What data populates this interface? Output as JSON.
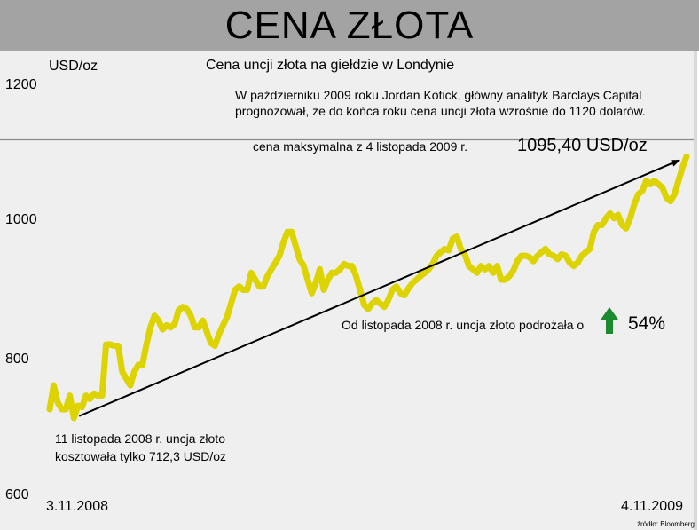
{
  "header": {
    "title": "CENA ZŁOTA"
  },
  "chart_data": {
    "type": "line",
    "title": "Cena uncji złota na giełdzie w Londynie",
    "ylabel": "USD/oz",
    "ylim": [
      600,
      1200
    ],
    "yticks": [
      600,
      800,
      1000,
      1200
    ],
    "x_start_label": "3.11.2008",
    "x_end_label": "4.11.2009",
    "grid": false,
    "colors": {
      "line": "#dcd300",
      "trend": "#000000",
      "arrow_up": "#1c8a2e",
      "reference_line": "#8a8a8a"
    },
    "reference_line": 1120,
    "series": [
      {
        "values": [
          725,
          760,
          735,
          725,
          725,
          745,
          712,
          730,
          728,
          745,
          740,
          748,
          745,
          745,
          820,
          820,
          818,
          818,
          780,
          770,
          760,
          780,
          790,
          790,
          820,
          845,
          862,
          855,
          842,
          848,
          845,
          850,
          870,
          875,
          872,
          862,
          845,
          845,
          855,
          838,
          822,
          818,
          835,
          848,
          860,
          880,
          900,
          905,
          900,
          900,
          925,
          915,
          905,
          905,
          920,
          930,
          940,
          950,
          970,
          985,
          985,
          965,
          945,
          935,
          915,
          895,
          910,
          930,
          900,
          915,
          925,
          925,
          930,
          938,
          935,
          935,
          920,
          900,
          878,
          872,
          880,
          885,
          880,
          875,
          885,
          900,
          905,
          895,
          892,
          902,
          910,
          915,
          920,
          925,
          930,
          938,
          950,
          955,
          960,
          958,
          975,
          978,
          960,
          952,
          935,
          930,
          925,
          935,
          930,
          935,
          925,
          935,
          915,
          915,
          920,
          928,
          942,
          950,
          950,
          948,
          942,
          950,
          955,
          960,
          952,
          950,
          945,
          952,
          950,
          940,
          935,
          940,
          950,
          955,
          960,
          985,
          995,
          995,
          1005,
          1012,
          1005,
          1010,
          995,
          990,
          1005,
          1025,
          1040,
          1045,
          1060,
          1055,
          1060,
          1055,
          1050,
          1035,
          1030,
          1040,
          1060,
          1080,
          1095.4
        ]
      }
    ],
    "trend_line": {
      "from": 712.3,
      "to": 1095.4
    },
    "annotations": {
      "note": "W październiku 2009 roku Jordan Kotick, główny analityk Barclays Capital prognozował, że do końca roku cena uncji złota wzrośnie do 1120 dolarów.",
      "max_label": "cena maksymalna z 4 listopada 2009 r.",
      "max_value": "1095,40 USD/oz",
      "rise_label": "Od listopada 2008 r. uncja złoto podrożała o",
      "rise_pct": "54%",
      "start_note": "11 listopada 2008 r. uncja złoto kosztowała tylko 712,3 USD/oz"
    },
    "source": "źródło: Bloomberg"
  }
}
